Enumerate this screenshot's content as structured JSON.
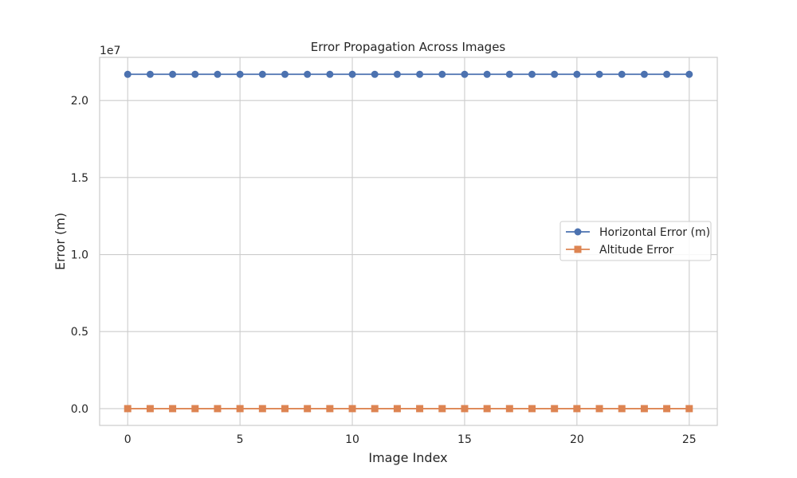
{
  "chart_data": {
    "type": "line",
    "title": "Error Propagation Across Images",
    "xlabel": "Image Index",
    "ylabel": "Error (m)",
    "y_offset_text": "1e7",
    "x": [
      0,
      1,
      2,
      3,
      4,
      5,
      6,
      7,
      8,
      9,
      10,
      11,
      12,
      13,
      14,
      15,
      16,
      17,
      18,
      19,
      20,
      21,
      22,
      23,
      24,
      25
    ],
    "xlim": [
      -1.25,
      26.25
    ],
    "ylim": [
      -1090000.0,
      22800000.0
    ],
    "x_ticks": [
      0,
      5,
      10,
      15,
      20,
      25
    ],
    "x_tick_labels": [
      "0",
      "5",
      "10",
      "15",
      "20",
      "25"
    ],
    "y_ticks": [
      0,
      5000000,
      10000000,
      15000000,
      20000000
    ],
    "y_tick_labels": [
      "0.0",
      "0.5",
      "1.0",
      "1.5",
      "2.0"
    ],
    "grid": true,
    "legend_position": "center-right",
    "series": [
      {
        "name": "Horizontal Error (m)",
        "color": "#4c72b0",
        "marker": "circle",
        "values": [
          21700000,
          21700000,
          21700000,
          21700000,
          21700000,
          21700000,
          21700000,
          21700000,
          21700000,
          21700000,
          21700000,
          21700000,
          21700000,
          21700000,
          21700000,
          21700000,
          21700000,
          21700000,
          21700000,
          21700000,
          21700000,
          21700000,
          21700000,
          21700000,
          21700000,
          21700000
        ]
      },
      {
        "name": "Altitude Error",
        "color": "#dd8452",
        "marker": "square",
        "values": [
          0,
          0,
          0,
          0,
          0,
          0,
          0,
          0,
          0,
          0,
          0,
          0,
          0,
          0,
          0,
          0,
          0,
          0,
          0,
          0,
          0,
          0,
          0,
          0,
          0,
          0
        ]
      }
    ]
  }
}
